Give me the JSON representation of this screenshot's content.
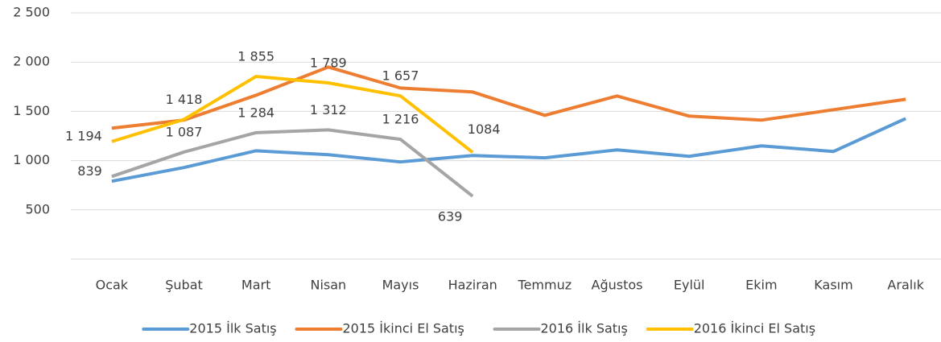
{
  "chart_data": {
    "type": "line",
    "categories": [
      "Ocak",
      "Şubat",
      "Mart",
      "Nisan",
      "Mayıs",
      "Haziran",
      "Temmuz",
      "Ağustos",
      "Eylül",
      "Ekim",
      "Kasım",
      "Aralık"
    ],
    "series": [
      {
        "name": "2015 İlk Satış",
        "color": "#5b9bd5",
        "values": [
          791,
          930,
          1100,
          1060,
          987,
          1052,
          1028,
          1109,
          1044,
          1150,
          1093,
          1427
        ]
      },
      {
        "name": "2015 İkinci El Satış",
        "color": "#ed7d31",
        "values": [
          1330,
          1411,
          1664,
          1950,
          1737,
          1697,
          1460,
          1656,
          1452,
          1411,
          1517,
          1623
        ]
      },
      {
        "name": "2016 İlk Satış",
        "color": "#a5a5a5",
        "values": [
          839,
          1087,
          1284,
          1312,
          1216,
          639,
          null,
          null,
          null,
          null,
          null,
          null
        ],
        "value_labels": [
          "839",
          "1 087",
          "1 284",
          "1 312",
          "1 216",
          "639",
          null,
          null,
          null,
          null,
          null,
          null
        ]
      },
      {
        "name": "2016 İkinci El Satış",
        "color": "#ffc000",
        "values": [
          1194,
          1418,
          1855,
          1789,
          1657,
          1084,
          null,
          null,
          null,
          null,
          null,
          null
        ],
        "value_labels": [
          "1 194",
          "1 418",
          "1 855",
          "1 789",
          "1 657",
          "1084",
          null,
          null,
          null,
          null,
          null,
          null
        ]
      }
    ],
    "ylim": [
      0,
      2500
    ],
    "yticks": [
      {
        "value": 500,
        "label": "500"
      },
      {
        "value": 1000,
        "label": "1 000"
      },
      {
        "value": 1500,
        "label": "1 500"
      },
      {
        "value": 2000,
        "label": "2 000"
      },
      {
        "value": 2500,
        "label": "2 500"
      }
    ],
    "grid": true
  }
}
